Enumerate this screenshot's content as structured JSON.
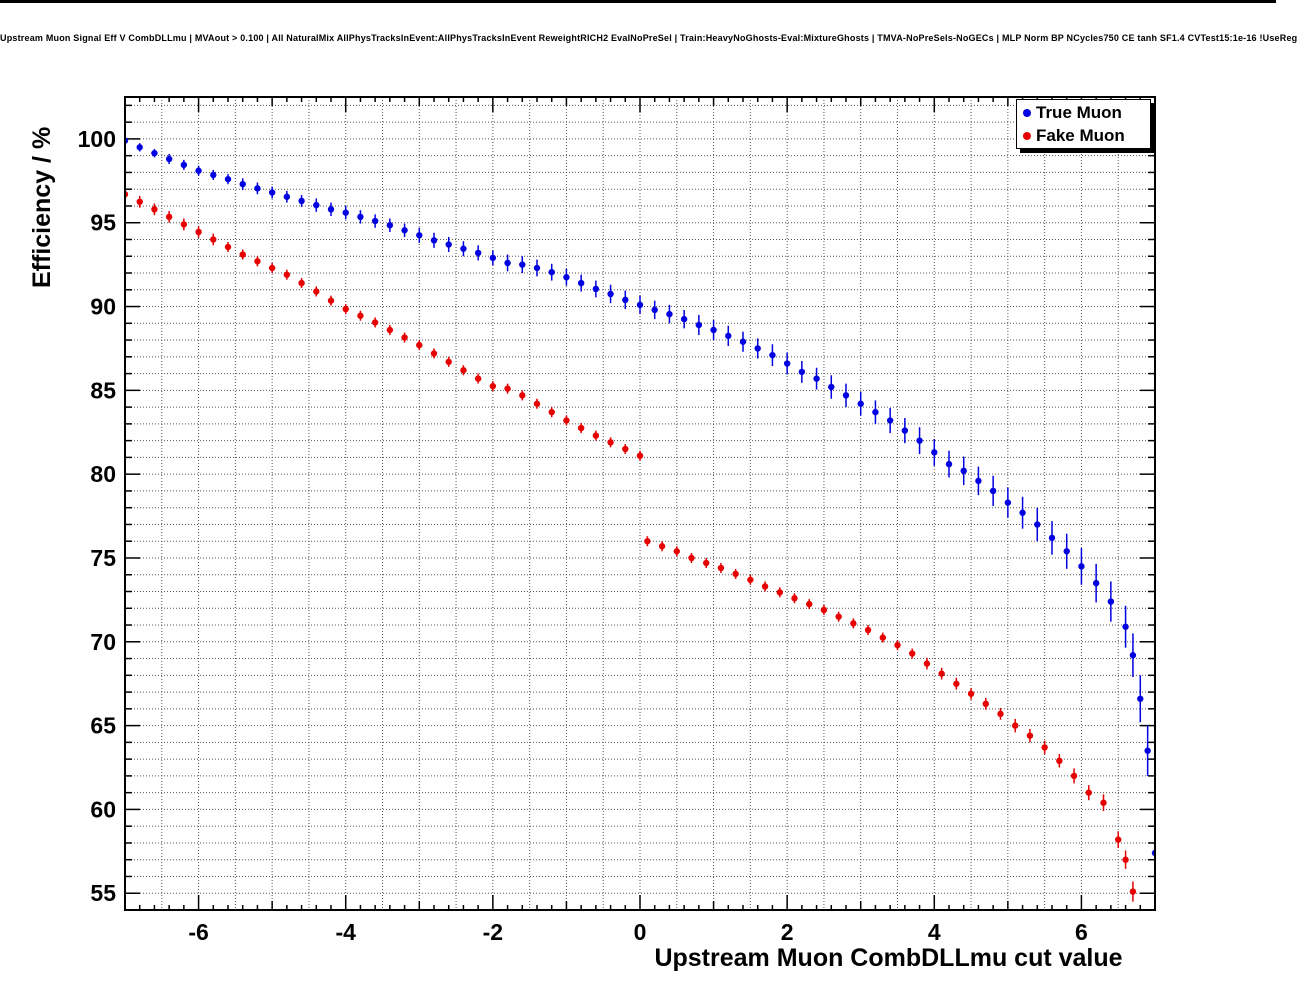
{
  "window": {
    "top_border_color": "#000000"
  },
  "chart_data": {
    "type": "scatter",
    "title": "Upstream Muon Signal Eff V CombDLLmu | MVAout > 0.100 | All NaturalMix AllPhysTracksInEvent:AllPhysTracksInEvent ReweightRICH2 EvalNoPreSel | Train:HeavyNoGhosts-Eval:MixtureGhosts | TMVA-NoPreSels-NoGECs | MLP Norm BP NCycles750 CE tanh SF1.4 CVTest15:1e-16 !UseReg",
    "xlabel": "Upstream Muon CombDLLmu cut value",
    "ylabel": "Efficiency / %",
    "xlim": [
      -7,
      7
    ],
    "ylim": [
      54,
      102.5
    ],
    "xticks": {
      "values": [
        -6,
        -4,
        -2,
        0,
        2,
        4,
        6
      ],
      "labels": [
        "-6",
        "-4",
        "-2",
        "0",
        "2",
        "4",
        "6"
      ]
    },
    "yticks": {
      "values": [
        55,
        60,
        65,
        70,
        75,
        80,
        85,
        90,
        95,
        100
      ],
      "labels": [
        "55",
        "60",
        "65",
        "70",
        "75",
        "80",
        "85",
        "90",
        "95",
        "100"
      ]
    },
    "grid": {
      "style": "dotted",
      "color": "#555555",
      "x_step": 0.5,
      "y_step": 1
    },
    "frame_color": "#000000",
    "background": "#ffffff",
    "legend": {
      "position": "top-right",
      "entries": [
        {
          "label": "True Muon",
          "color": "#0000e0",
          "marker": "circle"
        },
        {
          "label": "Fake Muon",
          "color": "#e60000",
          "marker": "circle"
        }
      ]
    },
    "series": [
      {
        "name": "True Muon",
        "color": "#0000e0",
        "marker": "circle",
        "points": [
          [
            -7,
            99.9,
            0.2
          ],
          [
            -6.8,
            99.5,
            0.25
          ],
          [
            -6.6,
            99.15,
            0.25
          ],
          [
            -6.4,
            98.8,
            0.3
          ],
          [
            -6.2,
            98.45,
            0.3
          ],
          [
            -6,
            98.1,
            0.3
          ],
          [
            -5.8,
            97.85,
            0.3
          ],
          [
            -5.6,
            97.6,
            0.3
          ],
          [
            -5.4,
            97.3,
            0.35
          ],
          [
            -5.2,
            97.05,
            0.35
          ],
          [
            -5,
            96.8,
            0.35
          ],
          [
            -4.8,
            96.55,
            0.35
          ],
          [
            -4.6,
            96.3,
            0.35
          ],
          [
            -4.4,
            96.05,
            0.4
          ],
          [
            -4.2,
            95.8,
            0.4
          ],
          [
            -4,
            95.6,
            0.4
          ],
          [
            -3.8,
            95.35,
            0.4
          ],
          [
            -3.6,
            95.1,
            0.4
          ],
          [
            -3.4,
            94.85,
            0.4
          ],
          [
            -3.2,
            94.55,
            0.4
          ],
          [
            -3,
            94.25,
            0.45
          ],
          [
            -2.8,
            93.95,
            0.45
          ],
          [
            -2.6,
            93.7,
            0.45
          ],
          [
            -2.4,
            93.45,
            0.45
          ],
          [
            -2.2,
            93.2,
            0.45
          ],
          [
            -2,
            92.9,
            0.45
          ],
          [
            -1.8,
            92.6,
            0.5
          ],
          [
            -1.6,
            92.5,
            0.5
          ],
          [
            -1.4,
            92.3,
            0.5
          ],
          [
            -1.2,
            92.05,
            0.5
          ],
          [
            -1,
            91.75,
            0.5
          ],
          [
            -0.8,
            91.4,
            0.5
          ],
          [
            -0.6,
            91.05,
            0.5
          ],
          [
            -0.4,
            90.75,
            0.55
          ],
          [
            -0.2,
            90.4,
            0.55
          ],
          [
            0,
            90.1,
            0.55
          ],
          [
            0.2,
            89.8,
            0.55
          ],
          [
            0.4,
            89.55,
            0.55
          ],
          [
            0.6,
            89.25,
            0.55
          ],
          [
            0.8,
            88.9,
            0.6
          ],
          [
            1,
            88.6,
            0.6
          ],
          [
            1.2,
            88.25,
            0.6
          ],
          [
            1.4,
            87.9,
            0.6
          ],
          [
            1.6,
            87.5,
            0.6
          ],
          [
            1.8,
            87.1,
            0.65
          ],
          [
            2,
            86.6,
            0.65
          ],
          [
            2.2,
            86.1,
            0.65
          ],
          [
            2.4,
            85.7,
            0.65
          ],
          [
            2.6,
            85.2,
            0.7
          ],
          [
            2.8,
            84.7,
            0.7
          ],
          [
            3,
            84.2,
            0.7
          ],
          [
            3.2,
            83.7,
            0.7
          ],
          [
            3.4,
            83.2,
            0.75
          ],
          [
            3.6,
            82.6,
            0.75
          ],
          [
            3.8,
            82,
            0.8
          ],
          [
            4,
            81.3,
            0.8
          ],
          [
            4.2,
            80.6,
            0.8
          ],
          [
            4.4,
            80.2,
            0.85
          ],
          [
            4.6,
            79.6,
            0.85
          ],
          [
            4.8,
            79,
            0.9
          ],
          [
            5,
            78.3,
            0.9
          ],
          [
            5.2,
            77.7,
            0.95
          ],
          [
            5.4,
            77,
            1
          ],
          [
            5.6,
            76.2,
            1
          ],
          [
            5.8,
            75.4,
            1.05
          ],
          [
            6,
            74.5,
            1.1
          ],
          [
            6.2,
            73.5,
            1.15
          ],
          [
            6.4,
            72.4,
            1.2
          ],
          [
            6.6,
            70.9,
            1.25
          ],
          [
            6.7,
            69.2,
            1.3
          ],
          [
            6.8,
            66.6,
            1.4
          ],
          [
            6.9,
            63.5,
            1.5
          ],
          [
            7,
            57.4,
            1.6
          ]
        ]
      },
      {
        "name": "Fake Muon",
        "color": "#e60000",
        "marker": "circle",
        "points": [
          [
            -7,
            96.7,
            0.35
          ],
          [
            -6.8,
            96.25,
            0.35
          ],
          [
            -6.6,
            95.8,
            0.35
          ],
          [
            -6.4,
            95.35,
            0.35
          ],
          [
            -6.2,
            94.9,
            0.35
          ],
          [
            -6,
            94.45,
            0.35
          ],
          [
            -5.8,
            94,
            0.35
          ],
          [
            -5.6,
            93.55,
            0.3
          ],
          [
            -5.4,
            93.1,
            0.3
          ],
          [
            -5.2,
            92.7,
            0.3
          ],
          [
            -5,
            92.3,
            0.3
          ],
          [
            -4.8,
            91.9,
            0.3
          ],
          [
            -4.6,
            91.4,
            0.3
          ],
          [
            -4.4,
            90.9,
            0.3
          ],
          [
            -4.2,
            90.35,
            0.3
          ],
          [
            -4,
            89.85,
            0.3
          ],
          [
            -3.8,
            89.45,
            0.3
          ],
          [
            -3.6,
            89.05,
            0.3
          ],
          [
            -3.4,
            88.6,
            0.3
          ],
          [
            -3.2,
            88.15,
            0.3
          ],
          [
            -3,
            87.7,
            0.3
          ],
          [
            -2.8,
            87.2,
            0.3
          ],
          [
            -2.6,
            86.7,
            0.3
          ],
          [
            -2.4,
            86.2,
            0.3
          ],
          [
            -2.2,
            85.7,
            0.3
          ],
          [
            -2,
            85.25,
            0.3
          ],
          [
            -1.8,
            85.1,
            0.3
          ],
          [
            -1.6,
            84.7,
            0.3
          ],
          [
            -1.4,
            84.2,
            0.3
          ],
          [
            -1.2,
            83.7,
            0.3
          ],
          [
            -1,
            83.2,
            0.3
          ],
          [
            -0.8,
            82.75,
            0.3
          ],
          [
            -0.6,
            82.3,
            0.3
          ],
          [
            -0.4,
            81.9,
            0.3
          ],
          [
            -0.2,
            81.5,
            0.3
          ],
          [
            0,
            81.1,
            0.3
          ],
          [
            0.1,
            76,
            0.3
          ],
          [
            0.3,
            75.7,
            0.3
          ],
          [
            0.5,
            75.4,
            0.3
          ],
          [
            0.7,
            75,
            0.3
          ],
          [
            0.9,
            74.7,
            0.3
          ],
          [
            1.1,
            74.4,
            0.3
          ],
          [
            1.3,
            74.05,
            0.3
          ],
          [
            1.5,
            73.7,
            0.3
          ],
          [
            1.7,
            73.3,
            0.3
          ],
          [
            1.9,
            72.95,
            0.3
          ],
          [
            2.1,
            72.6,
            0.3
          ],
          [
            2.3,
            72.25,
            0.3
          ],
          [
            2.5,
            71.9,
            0.3
          ],
          [
            2.7,
            71.5,
            0.3
          ],
          [
            2.9,
            71.1,
            0.3
          ],
          [
            3.1,
            70.7,
            0.3
          ],
          [
            3.3,
            70.25,
            0.3
          ],
          [
            3.5,
            69.8,
            0.3
          ],
          [
            3.7,
            69.3,
            0.3
          ],
          [
            3.9,
            68.7,
            0.35
          ],
          [
            4.1,
            68.1,
            0.35
          ],
          [
            4.3,
            67.5,
            0.35
          ],
          [
            4.5,
            66.9,
            0.35
          ],
          [
            4.7,
            66.3,
            0.35
          ],
          [
            4.9,
            65.7,
            0.35
          ],
          [
            5.1,
            65,
            0.4
          ],
          [
            5.3,
            64.4,
            0.4
          ],
          [
            5.5,
            63.7,
            0.4
          ],
          [
            5.7,
            62.9,
            0.4
          ],
          [
            5.9,
            62,
            0.45
          ],
          [
            6.1,
            61,
            0.45
          ],
          [
            6.3,
            60.4,
            0.5
          ],
          [
            6.5,
            58.2,
            0.5
          ],
          [
            6.6,
            57,
            0.55
          ],
          [
            6.7,
            55.1,
            0.6
          ]
        ]
      }
    ]
  }
}
